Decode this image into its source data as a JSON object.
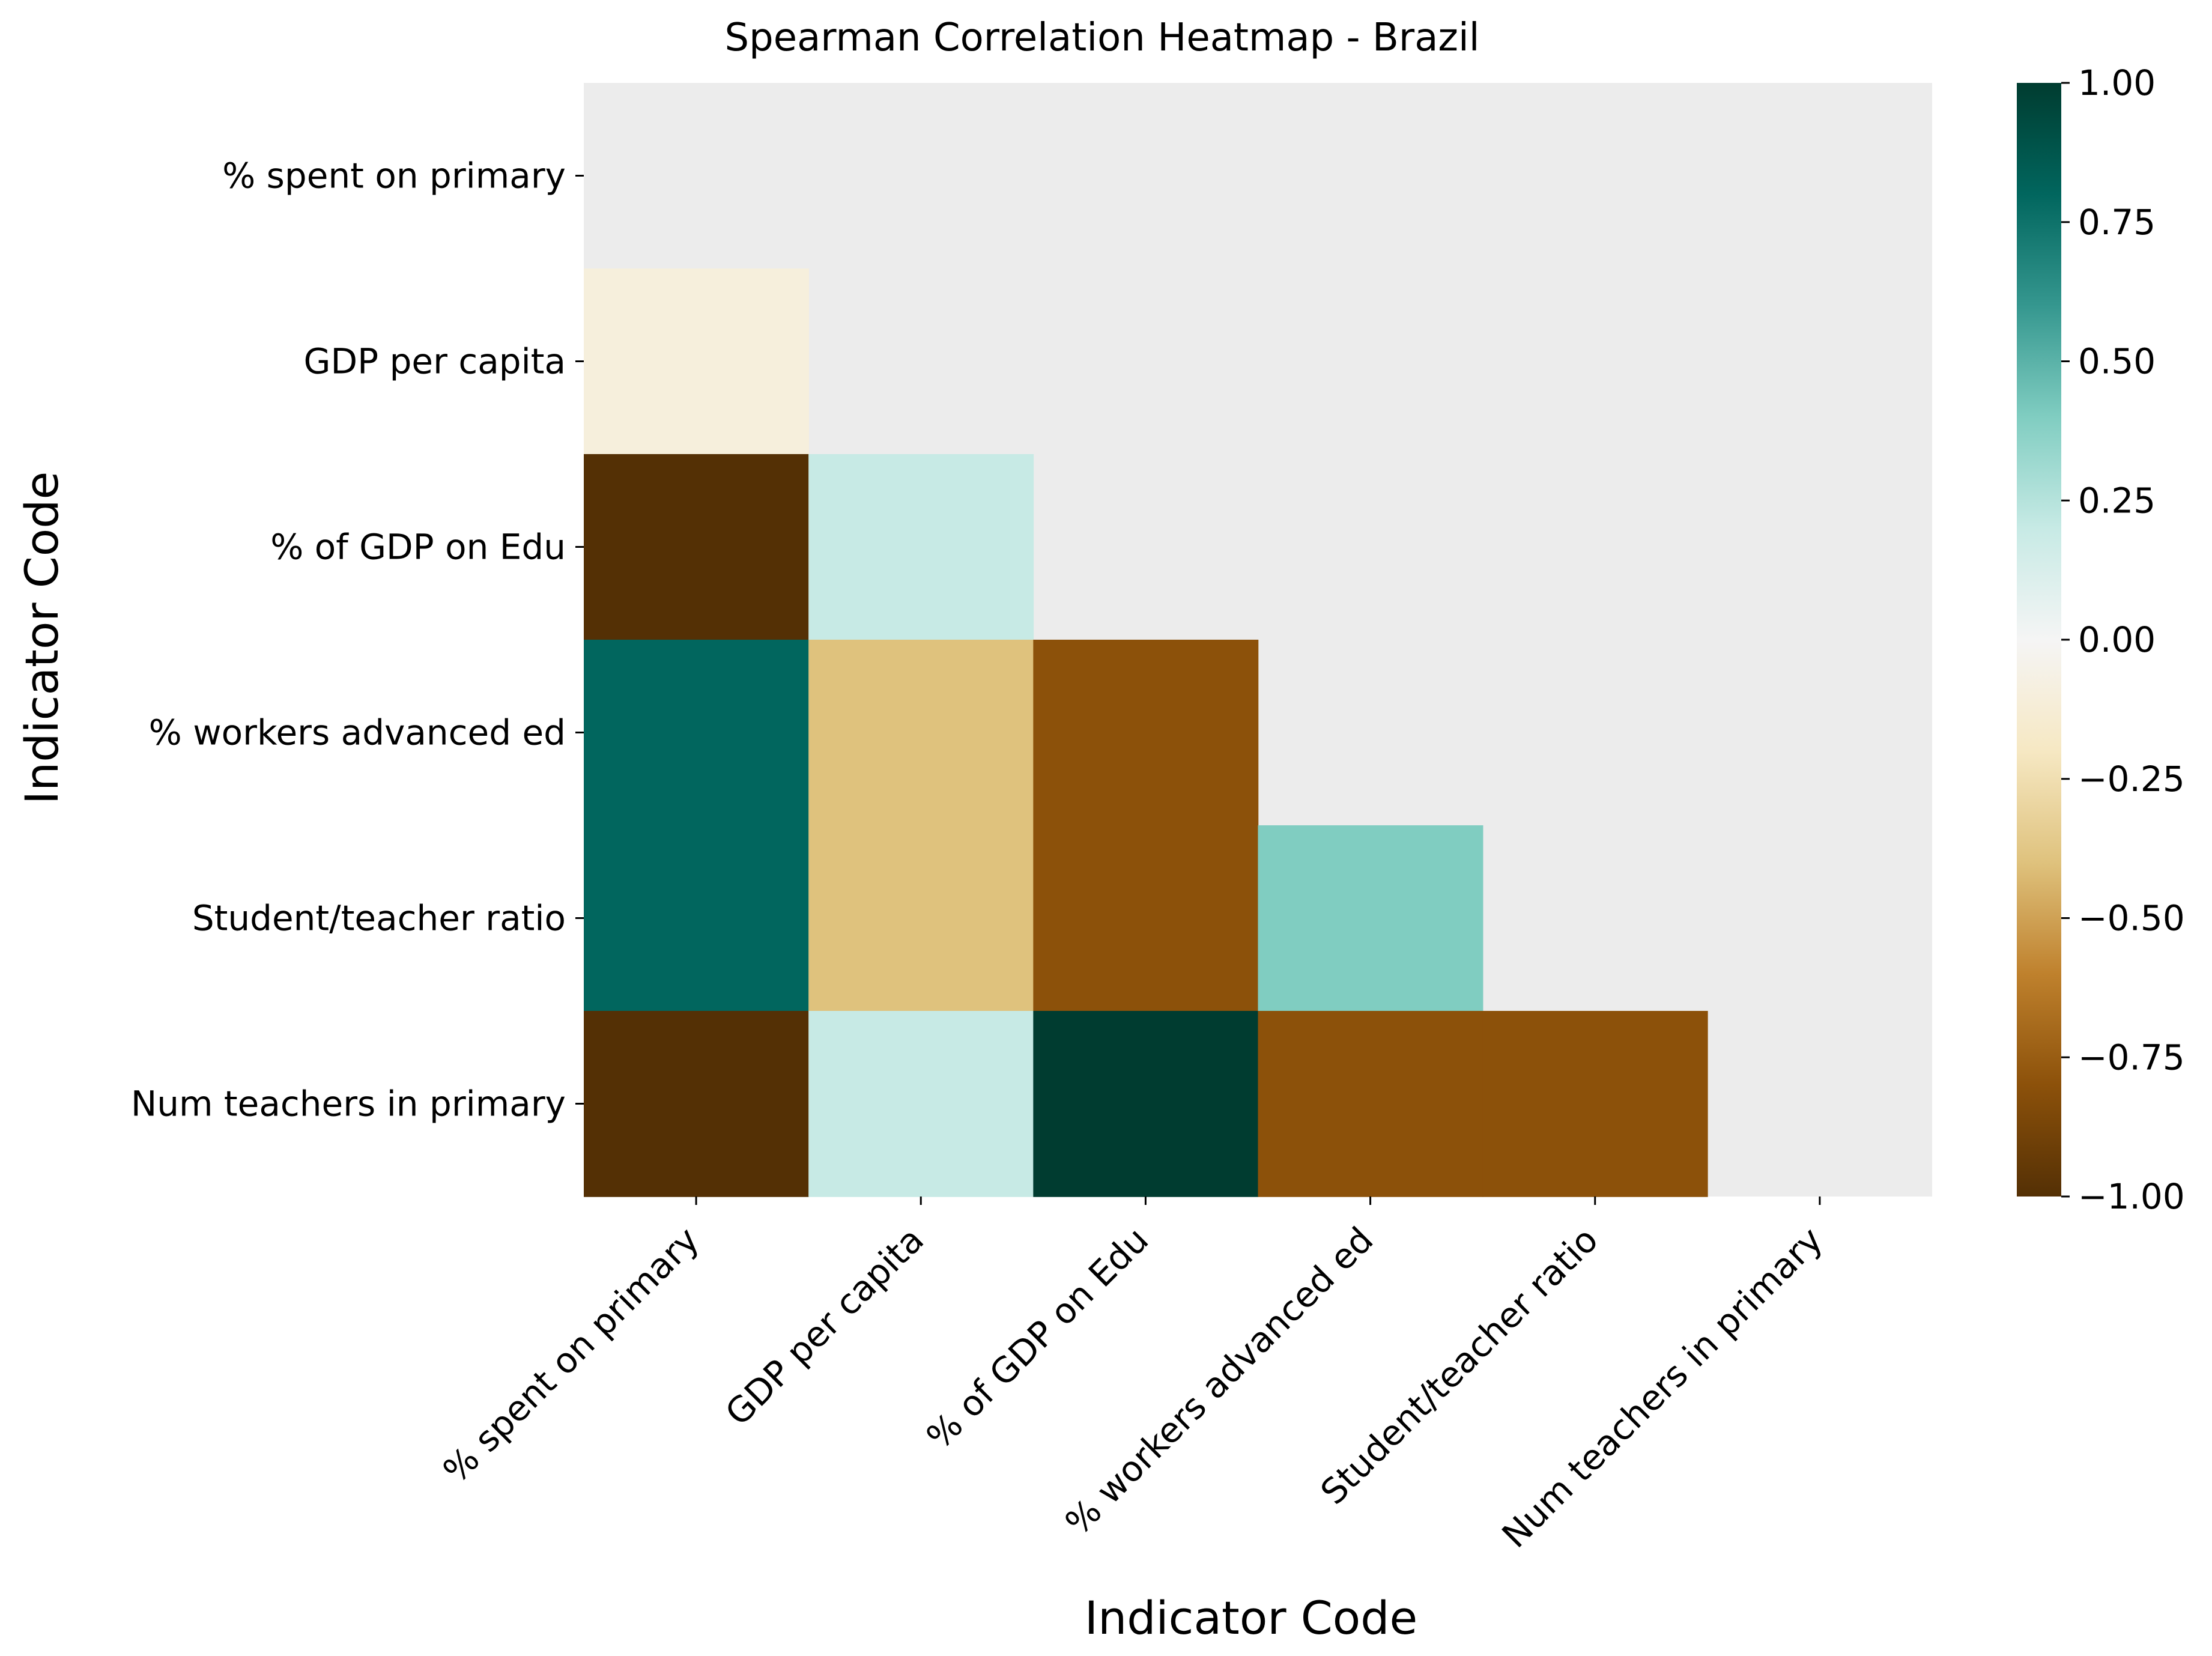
{
  "chart_data": {
    "type": "heatmap",
    "title": "Spearman Correlation Heatmap - Brazil",
    "xlabel": "Indicator Code",
    "ylabel": "Indicator Code",
    "labels": [
      "% spent on primary",
      "GDP per capita",
      "% of GDP on Edu",
      "% workers advanced ed",
      "Student/teacher ratio",
      "Num teachers in primary"
    ],
    "matrix": [
      [
        null,
        null,
        null,
        null,
        null,
        null
      ],
      [
        -0.1,
        null,
        null,
        null,
        null,
        null
      ],
      [
        -1.0,
        0.2,
        null,
        null,
        null,
        null
      ],
      [
        0.8,
        -0.4,
        -0.8,
        null,
        null,
        null
      ],
      [
        0.8,
        -0.4,
        -0.8,
        0.4,
        null,
        null
      ],
      [
        -1.0,
        0.2,
        1.0,
        -0.8,
        -0.8,
        null
      ]
    ],
    "mask": "upper triangle including diagonal",
    "mask_color": "#ececec",
    "colormap": "BrBG",
    "vmin": -1.0,
    "vmax": 1.0,
    "colorbar_ticks": [
      "1.00",
      "0.75",
      "0.50",
      "0.25",
      "0.00",
      "−0.25",
      "−0.50",
      "−0.75",
      "−1.00"
    ],
    "colorbar_values": [
      1.0,
      0.75,
      0.5,
      0.25,
      0.0,
      -0.25,
      -0.5,
      -0.75,
      -1.0
    ],
    "grid": false,
    "legend": "colorbar-right"
  }
}
